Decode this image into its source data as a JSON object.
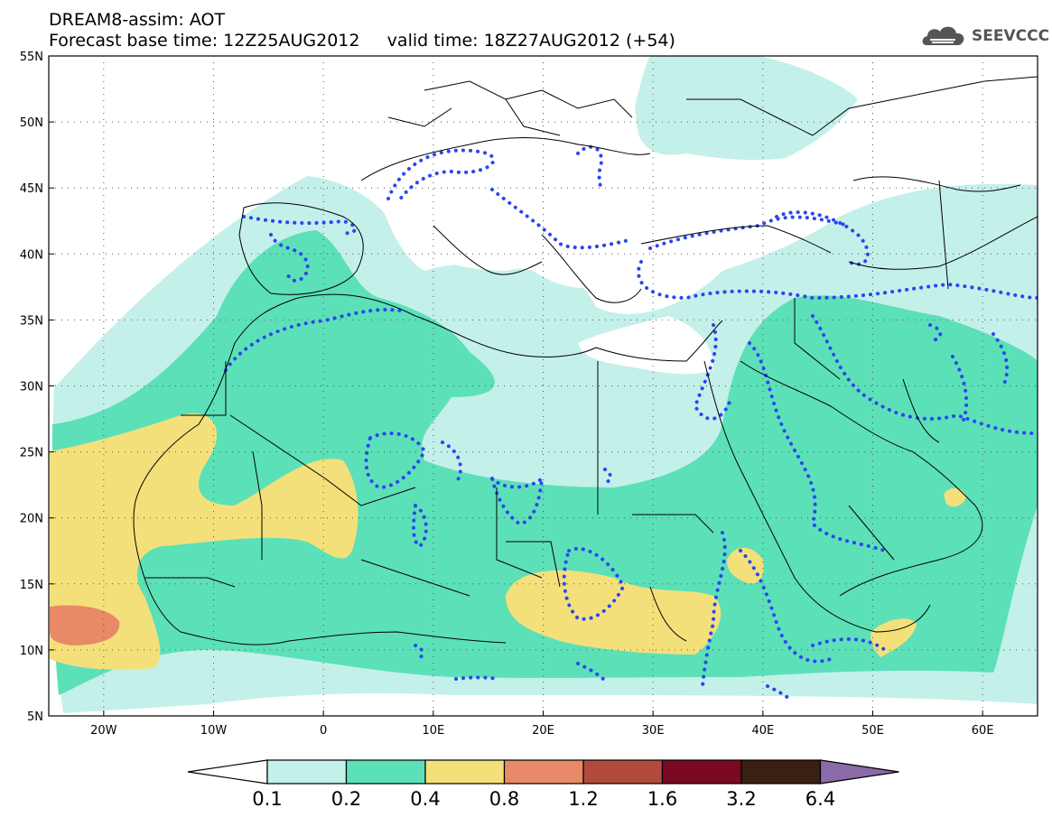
{
  "header": {
    "line1": "DREAM8-assim: AOT",
    "line2": "Forecast base time: 12Z25AUG2012     valid time: 18Z27AUG2012 (+54)"
  },
  "logo": {
    "text": "SEEVCCC",
    "icon": "cloud-icon"
  },
  "map": {
    "lon_range": [
      -25,
      65
    ],
    "lat_range": [
      5,
      55
    ],
    "lat_labels": [
      "55N",
      "50N",
      "45N",
      "40N",
      "35N",
      "30N",
      "25N",
      "20N",
      "15N",
      "10N",
      "5N"
    ],
    "lon_labels": [
      "20W",
      "10W",
      "0",
      "10E",
      "20E",
      "30E",
      "40E",
      "50E",
      "60E"
    ],
    "grid": "dotted"
  },
  "colorbar": {
    "labels": [
      "0.1",
      "0.2",
      "0.4",
      "0.8",
      "1.2",
      "1.6",
      "3.2",
      "6.4"
    ],
    "colors": [
      "#c4f0ea",
      "#5ce0b8",
      "#f4e07a",
      "#e88a68",
      "#b04a3c",
      "#7a0a22",
      "#3a2012",
      "#8a6aa8"
    ]
  },
  "colors": {
    "light_cyan": "#c4f0ea",
    "aqua": "#5ce0b8",
    "yellow": "#f4e07a",
    "salmon": "#e88a68",
    "dotted_contour": "#2a46f0",
    "borders": "#000000"
  }
}
